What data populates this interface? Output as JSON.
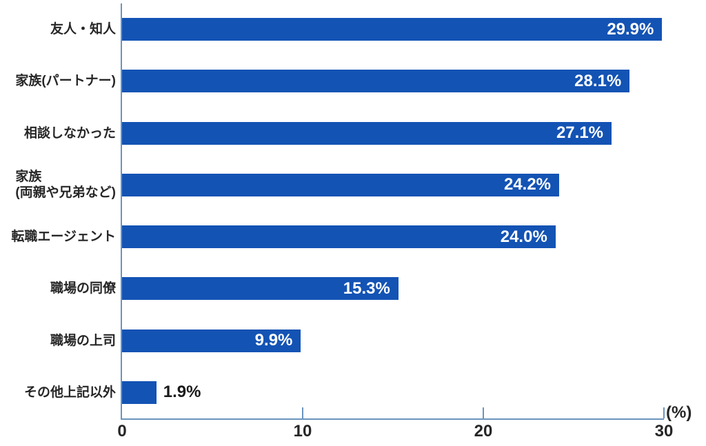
{
  "chart_data": {
    "type": "bar",
    "orientation": "horizontal",
    "title": "",
    "categories": [
      "友人・知人",
      "家族(パートナー)",
      "相談しなかった",
      "家族\n(両親や兄弟など)",
      "転職エージェント",
      "職場の同僚",
      "職場の上司",
      "その他上記以外"
    ],
    "values": [
      29.9,
      28.1,
      27.1,
      24.2,
      24.0,
      15.3,
      9.9,
      1.9
    ],
    "value_labels": [
      "29.9%",
      "28.1%",
      "27.1%",
      "24.2%",
      "24.0%",
      "15.3%",
      "9.9%",
      "1.9%"
    ],
    "xlabel": "(%)",
    "xlim": [
      0,
      30
    ],
    "xticks": [
      0,
      10,
      20,
      30
    ],
    "xtick_labels": [
      "0",
      "10",
      "20",
      "30"
    ],
    "grid": false,
    "legend": null,
    "bar_color": "#1353b4",
    "axis_color": "#6b94bd",
    "value_label_inside_color": "#ffffff",
    "value_label_outside_color": "#1a1a1a",
    "outside_label_threshold": 4
  }
}
